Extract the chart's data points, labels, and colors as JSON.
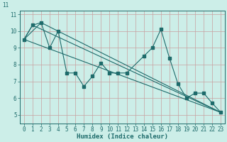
{
  "xlabel": "Humidex (Indice chaleur)",
  "background_color": "#cceee8",
  "line_color": "#1e6b6b",
  "grid_color_major": "#c8a0a0",
  "grid_color_minor": "#ddc8c8",
  "xlim": [
    -0.5,
    23.5
  ],
  "ylim": [
    4.5,
    11.2
  ],
  "yticks": [
    5,
    6,
    7,
    8,
    9,
    10,
    11
  ],
  "xticks": [
    0,
    1,
    2,
    3,
    4,
    5,
    6,
    7,
    8,
    9,
    10,
    11,
    12,
    13,
    14,
    15,
    16,
    17,
    18,
    19,
    20,
    21,
    22,
    23
  ],
  "main_line": {
    "x": [
      0,
      1,
      2,
      3,
      4,
      5,
      6,
      7,
      8,
      9,
      10,
      11,
      12,
      14,
      15,
      16,
      17,
      18,
      19,
      20,
      21,
      22,
      23
    ],
    "y": [
      9.5,
      10.35,
      10.5,
      9.0,
      10.0,
      7.5,
      7.5,
      6.7,
      7.3,
      8.1,
      7.5,
      7.5,
      7.5,
      8.5,
      9.0,
      10.1,
      8.4,
      6.85,
      6.0,
      6.3,
      6.3,
      5.7,
      5.15
    ]
  },
  "trend_lines": [
    {
      "x": [
        0,
        2,
        23
      ],
      "y": [
        9.5,
        10.5,
        5.15
      ]
    },
    {
      "x": [
        0,
        1,
        23
      ],
      "y": [
        9.5,
        10.35,
        5.15
      ]
    },
    {
      "x": [
        0,
        23
      ],
      "y": [
        9.5,
        5.15
      ]
    }
  ],
  "top_label": "11",
  "tick_fontsize": 5.5,
  "xlabel_fontsize": 6.5
}
